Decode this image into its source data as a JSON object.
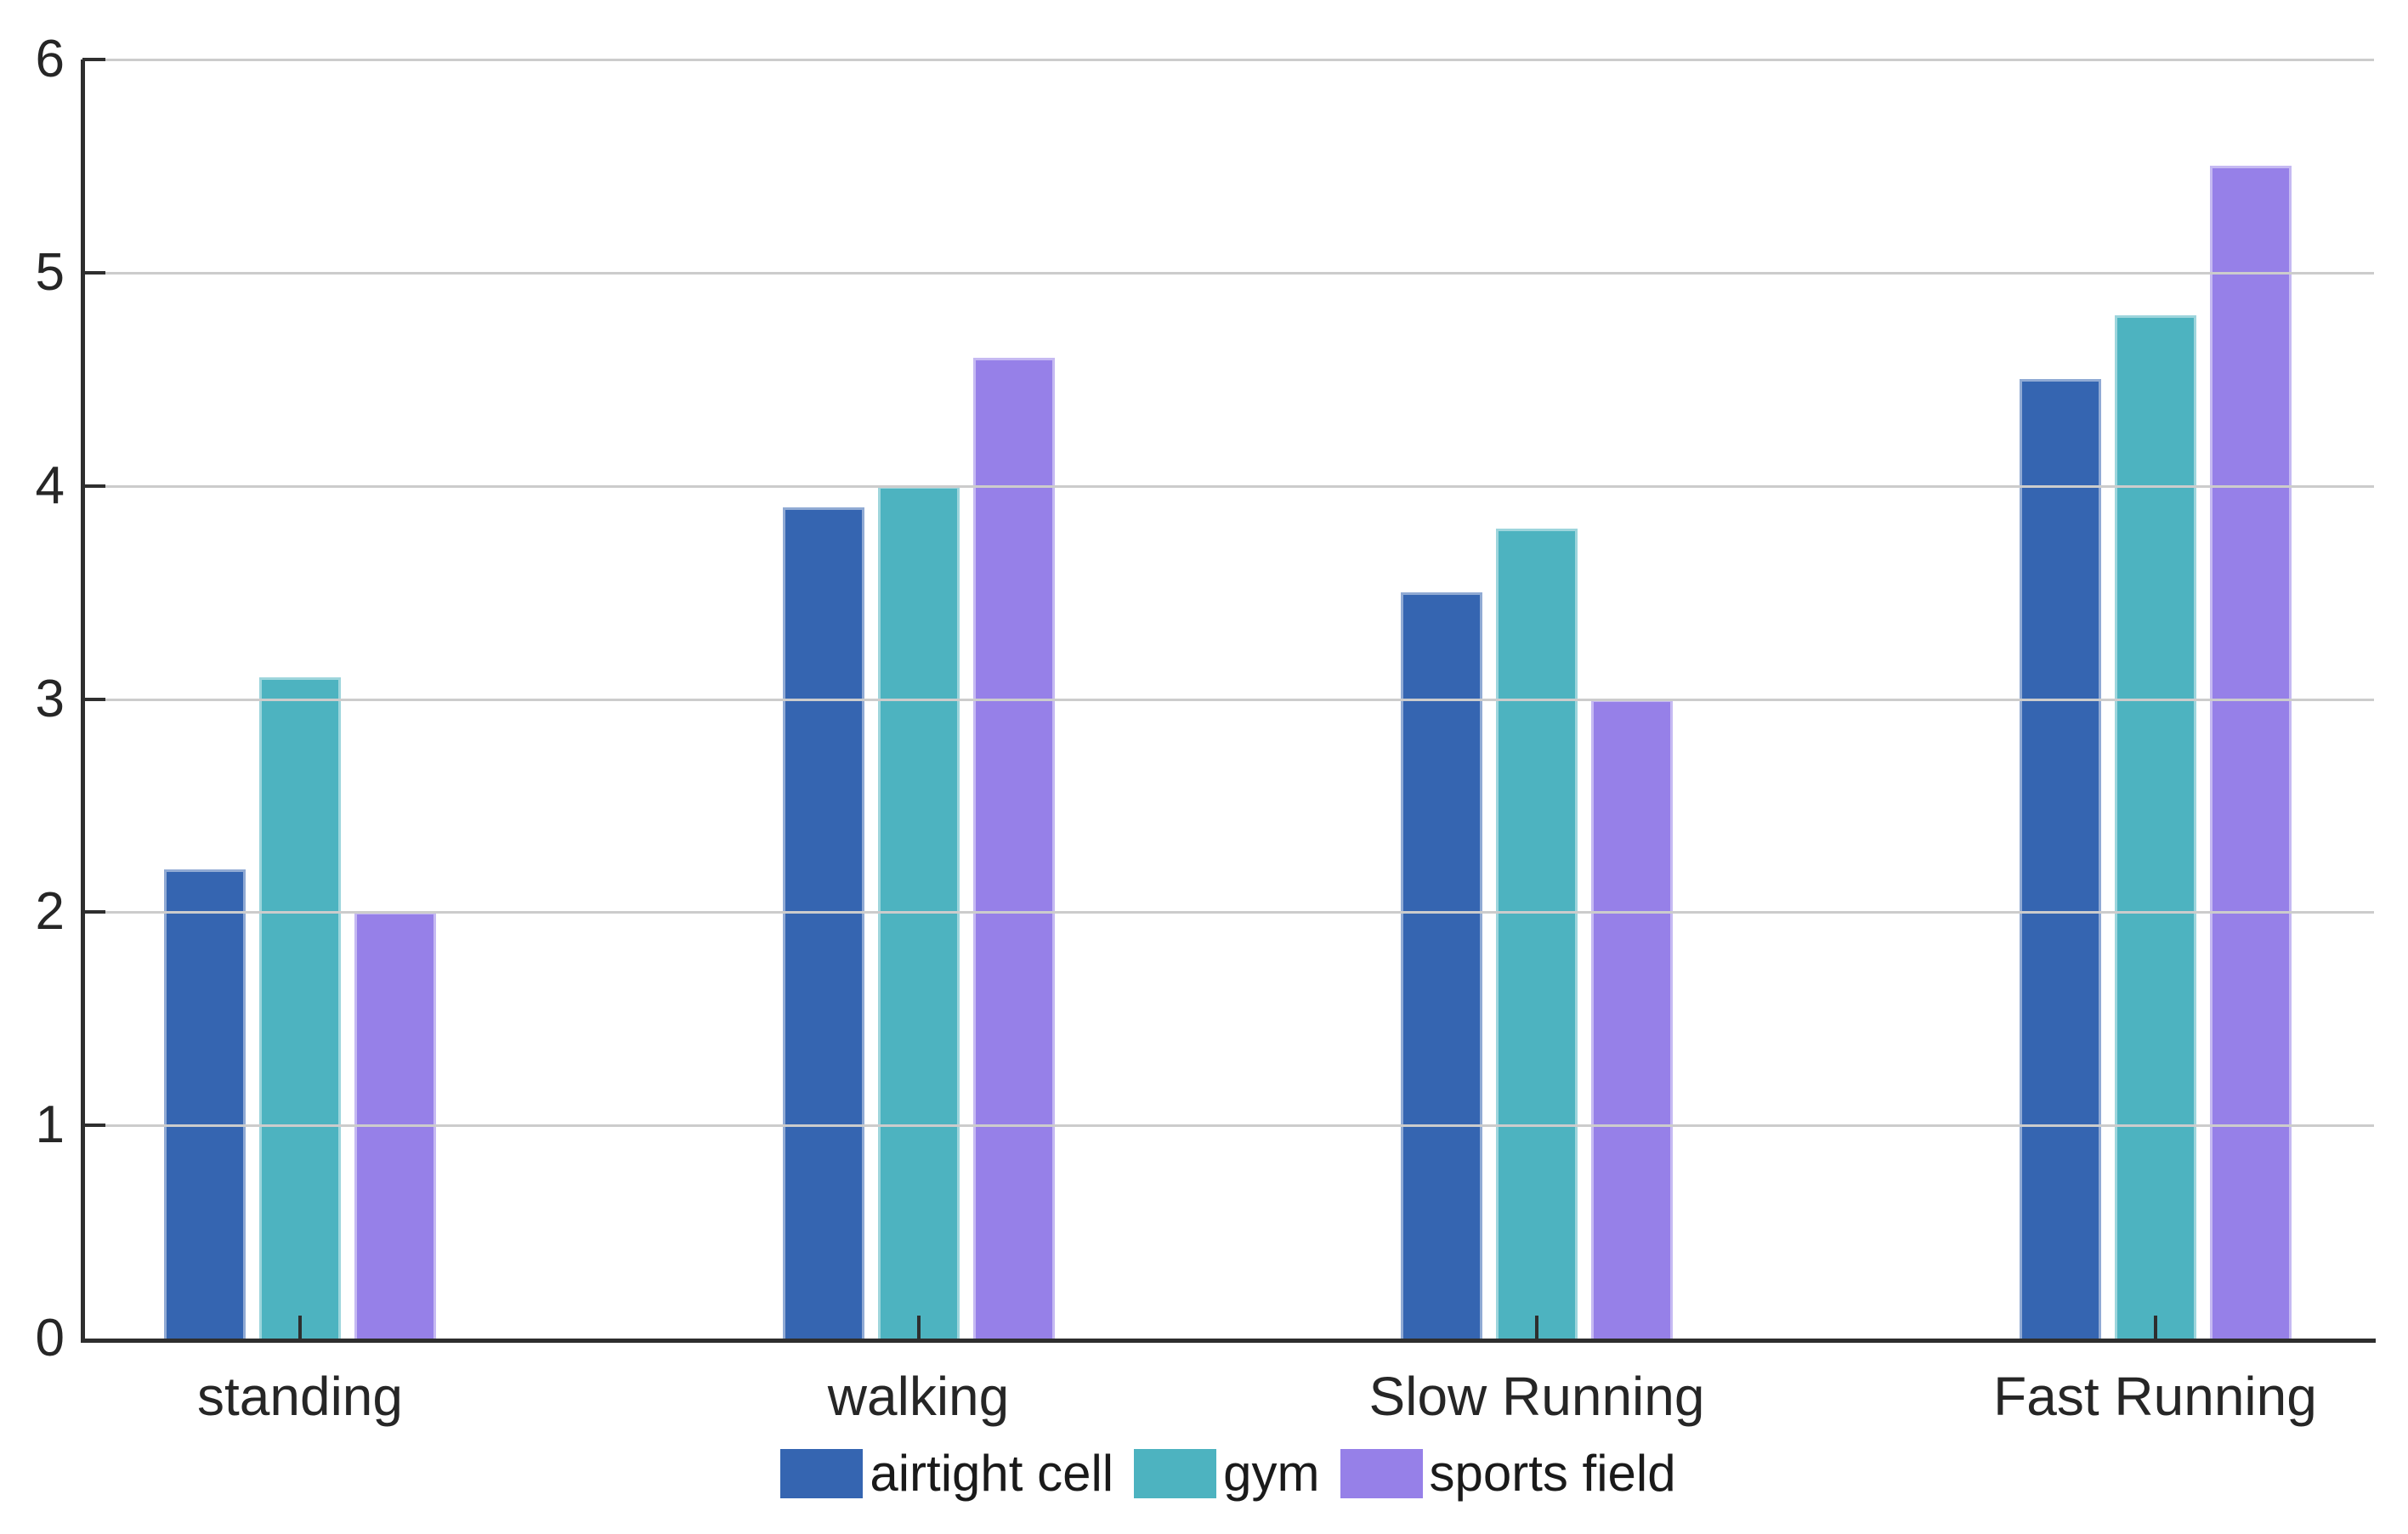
{
  "chart_data": {
    "type": "bar",
    "title": "",
    "xlabel": "",
    "ylabel": "",
    "categories": [
      "standing",
      "walking",
      "Slow Running",
      "Fast Running"
    ],
    "series": [
      {
        "name": "airtight cell",
        "color": "#3565b1",
        "values": [
          2.2,
          3.9,
          3.5,
          4.5
        ]
      },
      {
        "name": "gym",
        "color": "#4db3c0",
        "values": [
          3.1,
          4.0,
          3.8,
          4.8
        ]
      },
      {
        "name": "sports field",
        "color": "#9680e8",
        "values": [
          2.0,
          4.6,
          3.0,
          5.5
        ]
      }
    ],
    "y_ticks": [
      "0",
      "1",
      "2",
      "3",
      "4",
      "5",
      "6"
    ],
    "ylim": [
      0,
      6
    ],
    "grid": "horizontal-on-top",
    "legend_position": "bottom-center",
    "axis_color": "#2e2e2e",
    "grid_color": "#cccccc",
    "text_color": "#262626"
  }
}
